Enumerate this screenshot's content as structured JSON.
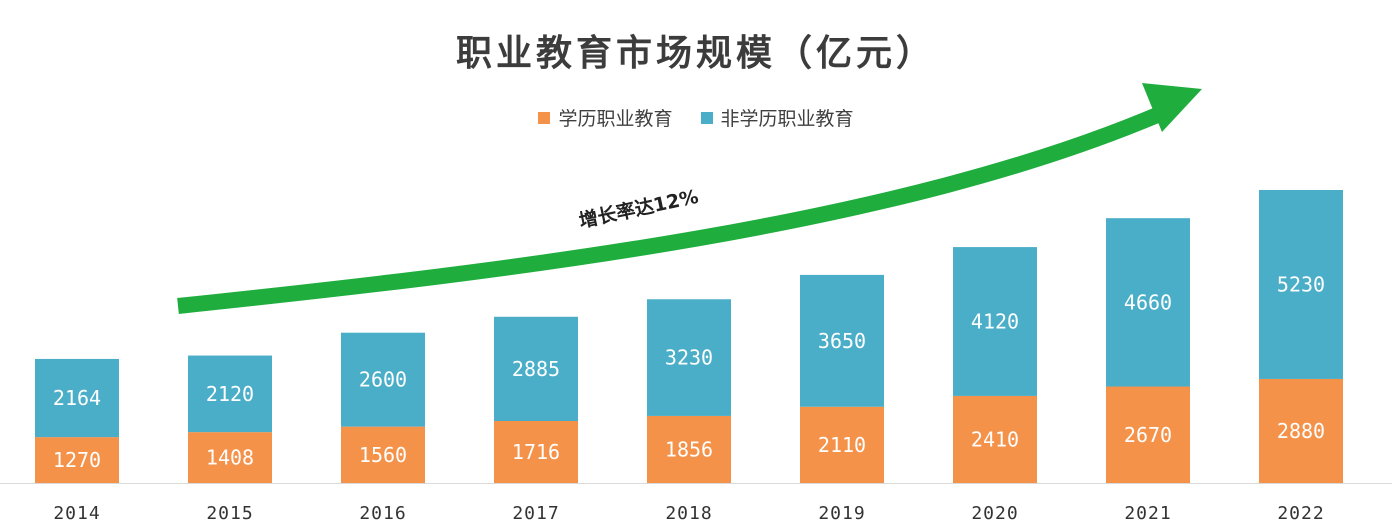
{
  "chart_data": {
    "type": "bar",
    "stacked": true,
    "title": "职业教育市场规模（亿元）",
    "categories": [
      "2014",
      "2015",
      "2016",
      "2017",
      "2018",
      "2019",
      "2020",
      "2021",
      "2022"
    ],
    "series": [
      {
        "name": "学历职业教育",
        "color": "#f5924a",
        "values": [
          1270,
          1408,
          1560,
          1716,
          1856,
          2110,
          2410,
          2670,
          2880
        ]
      },
      {
        "name": "非学历职业教育",
        "color": "#4aaec8",
        "values": [
          2164,
          2120,
          2600,
          2885,
          3230,
          3650,
          4120,
          4660,
          5230
        ]
      }
    ],
    "annotation": "增长率达12%",
    "annotation_color": "#1fae3e",
    "xlabel": "",
    "ylabel": "",
    "ylim": [
      0,
      8110
    ]
  }
}
